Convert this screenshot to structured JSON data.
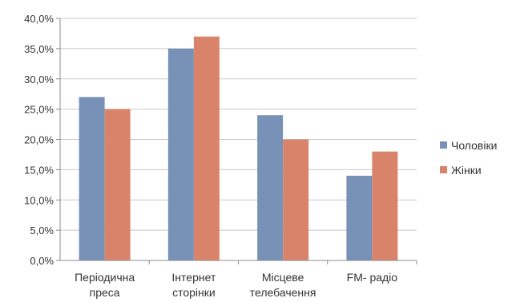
{
  "chart_data": {
    "type": "bar",
    "categories": [
      "Періодична преса",
      "Інтернет сторінки",
      "Місцеве телебачення",
      "FM-радіо"
    ],
    "category_label_lines": [
      [
        "Періодична",
        "преса"
      ],
      [
        "Інтернет",
        "сторінки"
      ],
      [
        "Місцеве",
        "телебачення"
      ],
      [
        "FM- радіо"
      ]
    ],
    "series": [
      {
        "name": "Чоловіки",
        "values": [
          27,
          35,
          24,
          14
        ],
        "color": "#7891b6"
      },
      {
        "name": "Жінки",
        "values": [
          25,
          37,
          20,
          18
        ],
        "color": "#d9846a"
      }
    ],
    "ylim": [
      0,
      40
    ],
    "yticks": [
      0,
      5,
      10,
      15,
      20,
      25,
      30,
      35,
      40
    ],
    "ytick_labels": [
      "0,0%",
      "5,0%",
      "10,0%",
      "15,0%",
      "20,0%",
      "25,0%",
      "30,0%",
      "35,0%",
      "40,0%"
    ],
    "grid": true,
    "legend_position": "right"
  }
}
